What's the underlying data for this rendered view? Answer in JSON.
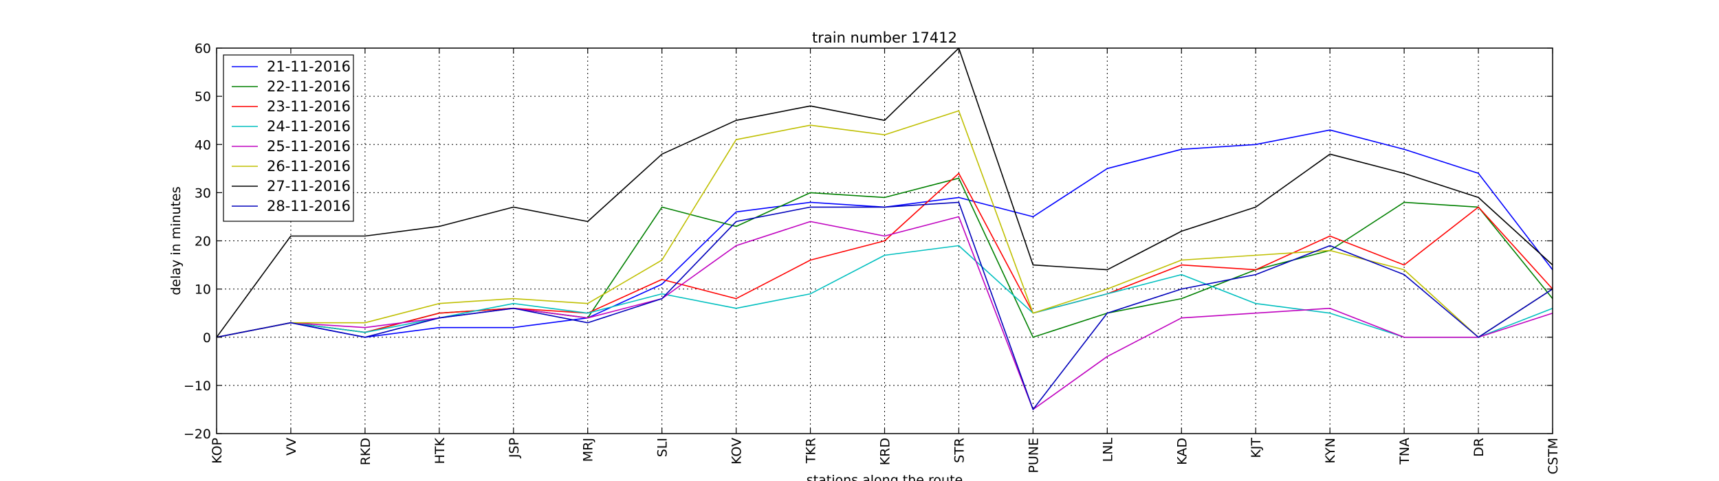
{
  "chart_data": {
    "type": "line",
    "title": "train number 17412",
    "xlabel": "stations along the route",
    "ylabel": "delay in minutes",
    "categories": [
      "KOP",
      "VV",
      "RKD",
      "HTK",
      "JSP",
      "MRJ",
      "SLI",
      "KOV",
      "TKR",
      "KRD",
      "STR",
      "PUNE",
      "LNL",
      "KAD",
      "KJT",
      "KYN",
      "TNA",
      "DR",
      "CSTM"
    ],
    "ylim": [
      -20,
      60
    ],
    "yticks": [
      -20,
      -10,
      0,
      10,
      20,
      30,
      40,
      50,
      60
    ],
    "grid": true,
    "legend_position": "top-left",
    "series": [
      {
        "name": "21-11-2016",
        "color": "#0000ff",
        "values": [
          0,
          3,
          0,
          2,
          2,
          4,
          11,
          26,
          28,
          27,
          29,
          25,
          35,
          39,
          40,
          43,
          39,
          34,
          14
        ]
      },
      {
        "name": "22-11-2016",
        "color": "#008000",
        "values": [
          0,
          3,
          1,
          5,
          6,
          4,
          27,
          23,
          30,
          29,
          33,
          0,
          5,
          8,
          14,
          18,
          28,
          27,
          8
        ]
      },
      {
        "name": "23-11-2016",
        "color": "#ff0000",
        "values": [
          0,
          3,
          1,
          5,
          6,
          5,
          12,
          8,
          16,
          20,
          34,
          5,
          9,
          15,
          14,
          21,
          15,
          27,
          10
        ]
      },
      {
        "name": "24-11-2016",
        "color": "#00bfbf",
        "values": [
          0,
          3,
          1,
          4,
          7,
          5,
          9,
          6,
          9,
          17,
          19,
          5,
          9,
          13,
          7,
          5,
          0,
          0,
          6
        ]
      },
      {
        "name": "25-11-2016",
        "color": "#bf00bf",
        "values": [
          0,
          3,
          2,
          4,
          6,
          4,
          8,
          19,
          24,
          21,
          25,
          -15,
          -4,
          4,
          5,
          6,
          0,
          0,
          5
        ]
      },
      {
        "name": "26-11-2016",
        "color": "#bfbf00",
        "values": [
          0,
          3,
          3,
          7,
          8,
          7,
          16,
          41,
          44,
          42,
          47,
          5,
          10,
          16,
          17,
          18,
          14,
          0,
          10
        ]
      },
      {
        "name": "27-11-2016",
        "color": "#000000",
        "values": [
          0,
          21,
          21,
          23,
          27,
          24,
          38,
          45,
          48,
          45,
          60,
          15,
          14,
          22,
          27,
          38,
          34,
          29,
          15
        ]
      },
      {
        "name": "28-11-2016",
        "color": "#0000bb",
        "values": [
          0,
          3,
          0,
          4,
          6,
          3,
          8,
          24,
          27,
          27,
          28,
          -15,
          5,
          10,
          13,
          19,
          13,
          0,
          10
        ]
      }
    ]
  }
}
